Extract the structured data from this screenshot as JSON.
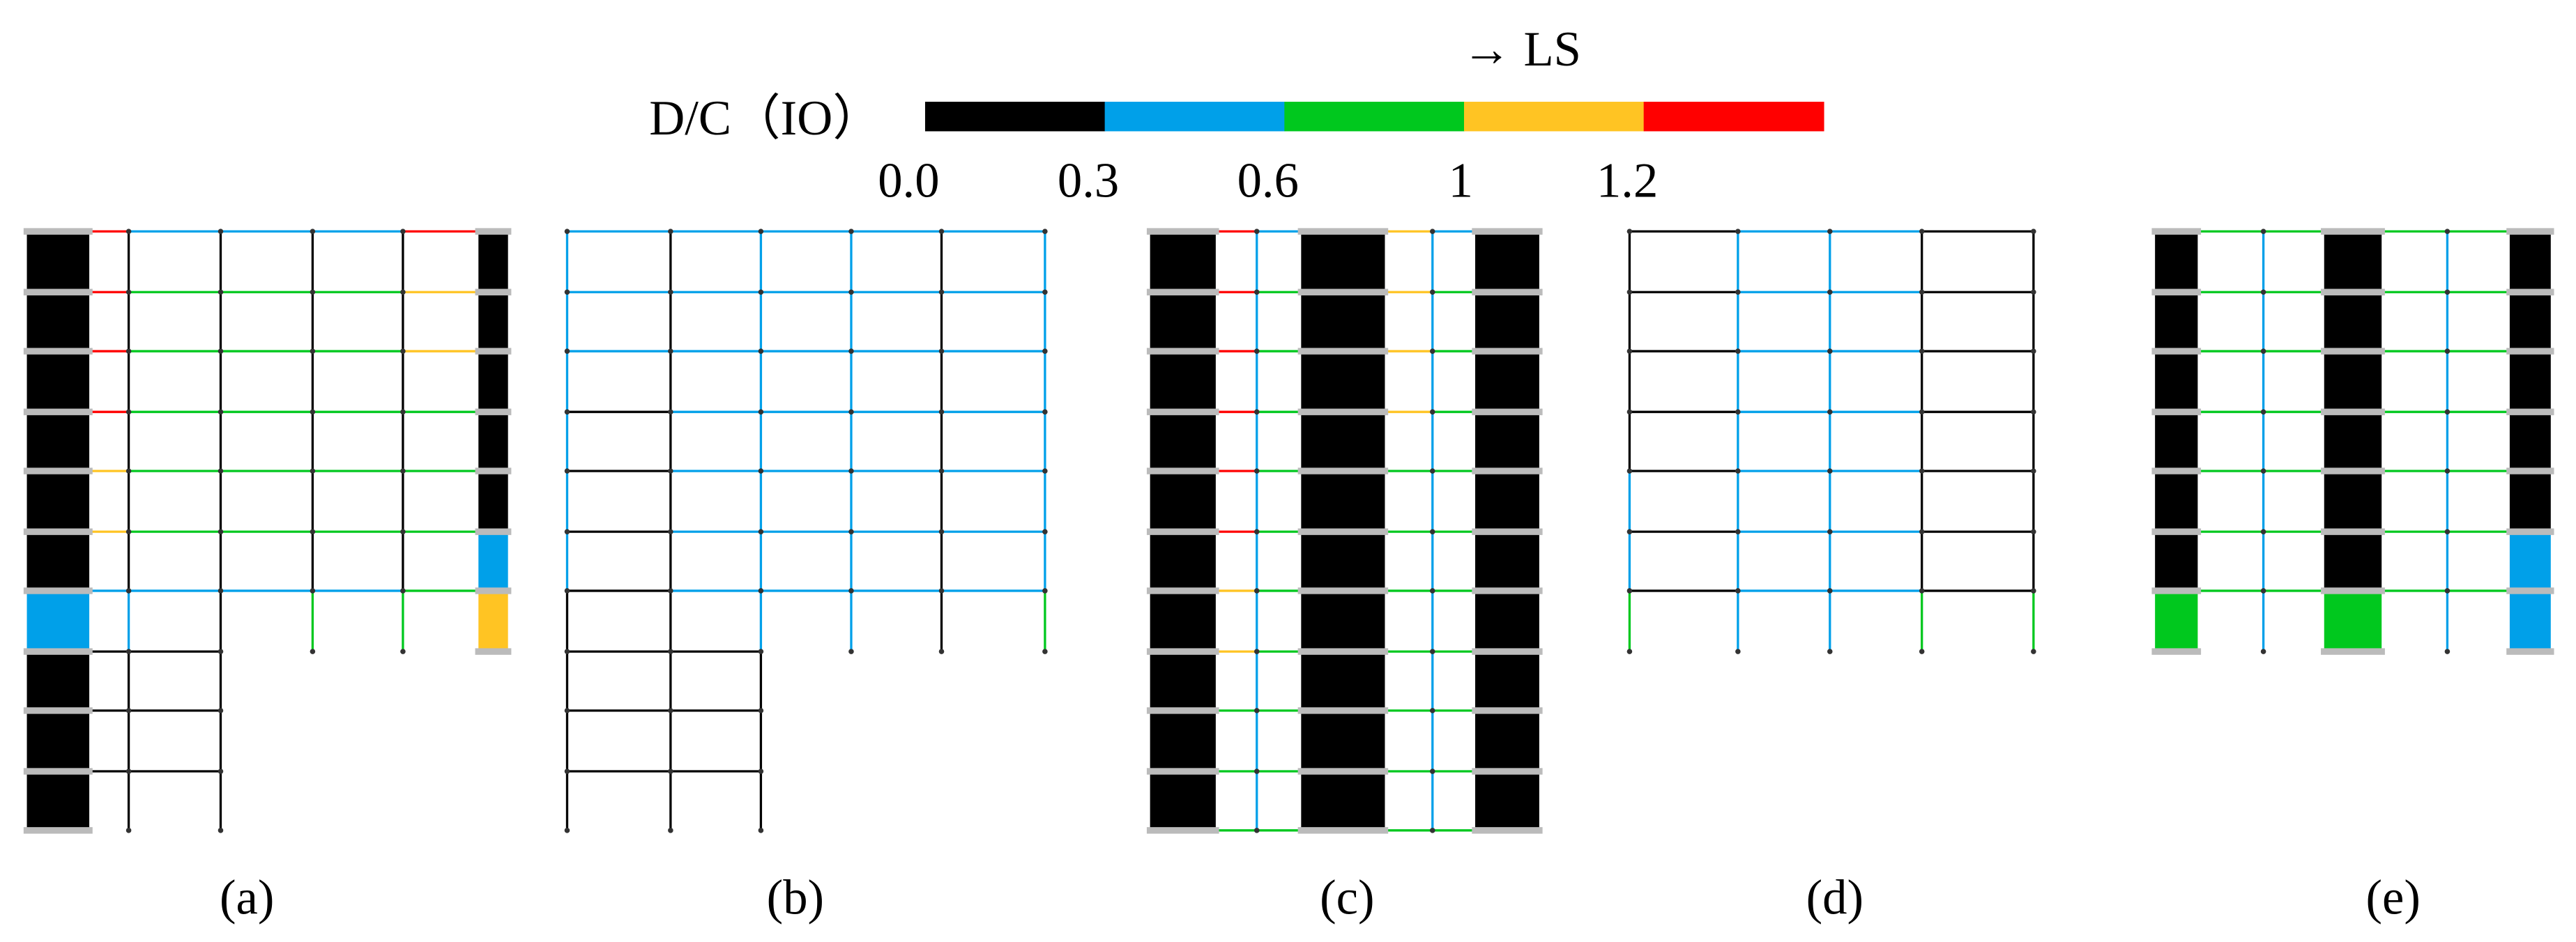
{
  "legend": {
    "title": "D/C（IO）",
    "arrow_label": "→ LS",
    "colors": [
      "#000000",
      "#00a0e9",
      "#00c81e",
      "#ffc423",
      "#ff0000"
    ],
    "ticks": [
      "0.0",
      "0.3",
      "0.6",
      "1",
      "1.2"
    ]
  },
  "panels": [
    {
      "label": "(a)"
    },
    {
      "label": "(b)"
    },
    {
      "label": "(c)"
    },
    {
      "label": "(d)"
    },
    {
      "label": "(e)"
    }
  ]
}
